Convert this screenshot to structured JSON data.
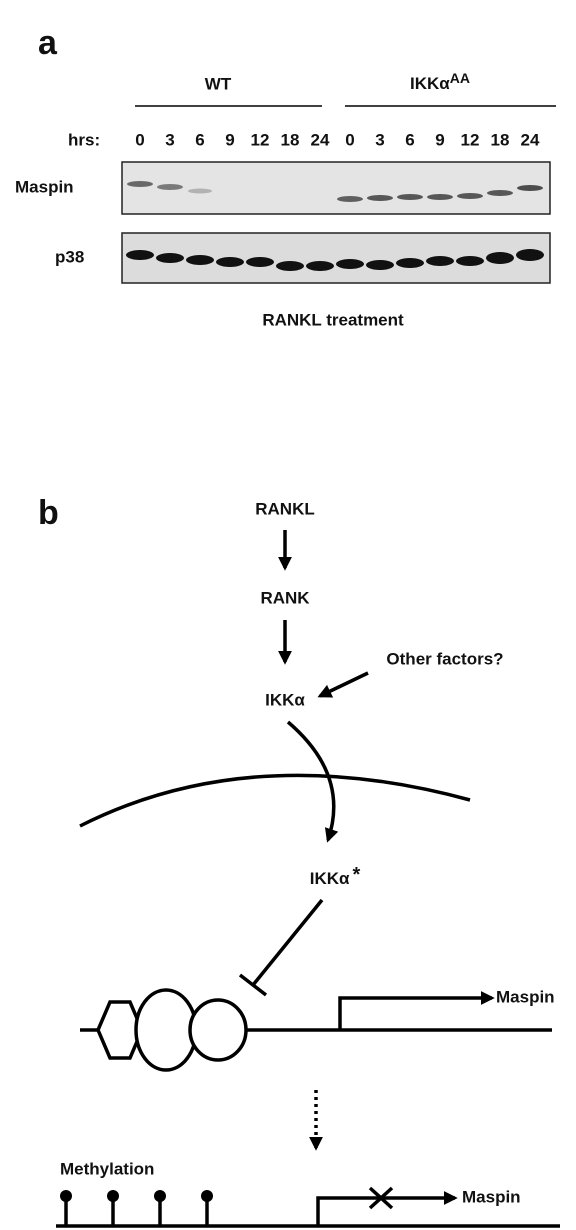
{
  "panel_a": {
    "label": "a",
    "groups": [
      {
        "name": "WT",
        "hours": [
          "0",
          "3",
          "6",
          "9",
          "12",
          "18",
          "24"
        ]
      },
      {
        "name": "IKKα",
        "superscript": "AA",
        "hours": [
          "0",
          "3",
          "6",
          "9",
          "12",
          "18",
          "24"
        ]
      }
    ],
    "hours_label": "hrs:",
    "rows": [
      "Maspin",
      "p38"
    ],
    "caption": "RANKL treatment"
  },
  "panel_b": {
    "label": "b",
    "nodes": [
      "RANKL",
      "RANK",
      "IKKα"
    ],
    "other": "Other factors?",
    "active": "IKKα",
    "active_mark": "*",
    "gene_top": "Maspin",
    "methylation": "Methylation",
    "gene_bottom": "Maspin"
  }
}
